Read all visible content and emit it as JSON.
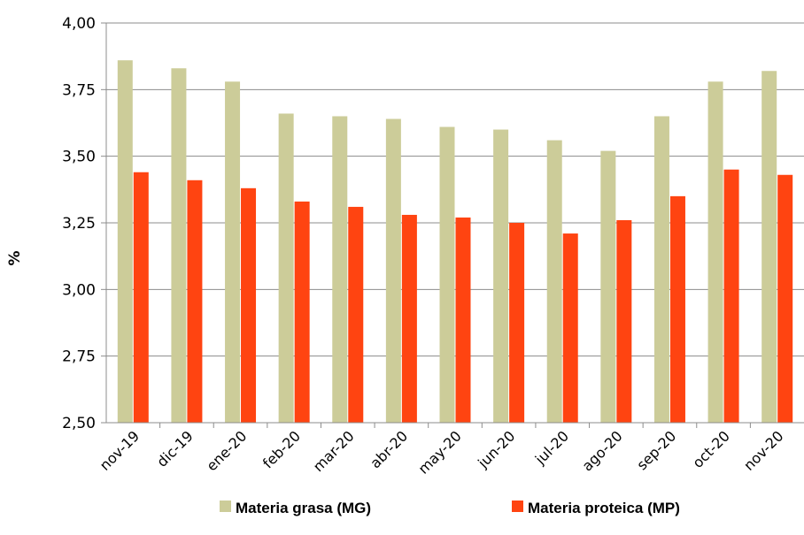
{
  "chart_data": {
    "type": "bar",
    "title": "",
    "xlabel": "",
    "ylabel": "%",
    "ylim": [
      2.5,
      4.0
    ],
    "yticks": [
      "2,50",
      "2,75",
      "3,00",
      "3,25",
      "3,50",
      "3,75",
      "4,00"
    ],
    "grid": true,
    "legend_position": "bottom",
    "categories": [
      "nov-19",
      "dic-19",
      "ene-20",
      "feb-20",
      "mar-20",
      "abr-20",
      "may-20",
      "jun-20",
      "jul-20",
      "ago-20",
      "sep-20",
      "oct-20",
      "nov-20"
    ],
    "series": [
      {
        "name": "Materia grasa (MG)",
        "color": "#CCCC99",
        "values": [
          3.86,
          3.83,
          3.78,
          3.66,
          3.65,
          3.64,
          3.61,
          3.6,
          3.56,
          3.52,
          3.65,
          3.78,
          3.82
        ]
      },
      {
        "name": "Materia proteica (MP)",
        "color": "#FF4411",
        "values": [
          3.44,
          3.41,
          3.38,
          3.33,
          3.31,
          3.28,
          3.27,
          3.25,
          3.21,
          3.26,
          3.35,
          3.45,
          3.43
        ]
      }
    ]
  }
}
